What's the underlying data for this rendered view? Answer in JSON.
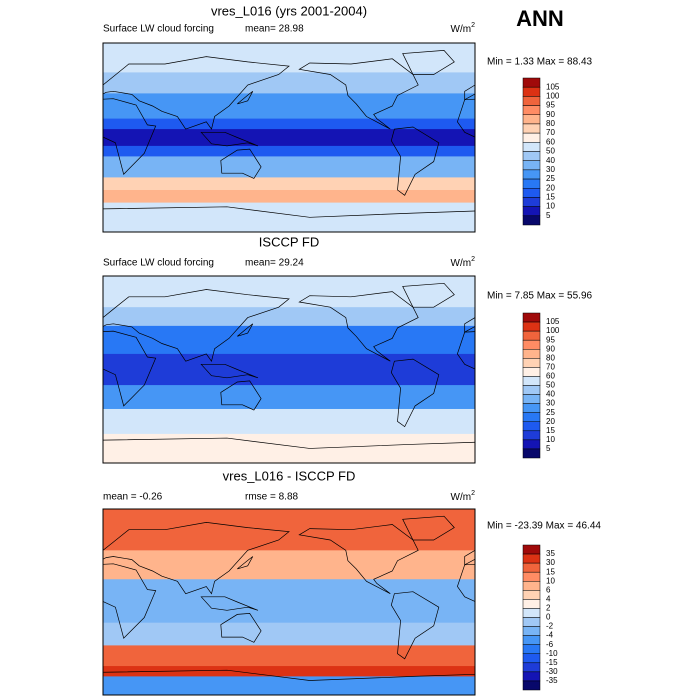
{
  "season": "ANN",
  "panels": [
    {
      "title": "vres_L016 (yrs 2001-2004)",
      "left": "Surface LW cloud forcing",
      "center": "mean=  28.98",
      "units": {
        "base": "W/m",
        "sup": "2"
      },
      "minmax": "Min =  1.33 Max =  88.43",
      "colorbar_labels": [
        "105",
        "100",
        "95",
        "90",
        "80",
        "70",
        "60",
        "50",
        "40",
        "30",
        "25",
        "20",
        "15",
        "10",
        "5"
      ]
    },
    {
      "title": "ISCCP FD",
      "left": "Surface LW cloud forcing",
      "center": "mean=  29.24",
      "units": {
        "base": "W/m",
        "sup": "2"
      },
      "minmax": "Min =  7.85 Max =  55.96",
      "colorbar_labels": [
        "105",
        "100",
        "95",
        "90",
        "80",
        "70",
        "60",
        "50",
        "40",
        "30",
        "25",
        "20",
        "15",
        "10",
        "5"
      ]
    },
    {
      "title": "vres_L016 - ISCCP FD",
      "left": "mean =  -0.26",
      "center": "rmse =  8.88",
      "units": {
        "base": "W/m",
        "sup": "2"
      },
      "minmax": "Min = -23.39 Max =  46.44",
      "colorbar_labels": [
        "35",
        "30",
        "15",
        "10",
        "6",
        "4",
        "2",
        "0",
        "-2",
        "-4",
        "-6",
        "-10",
        "-15",
        "-30",
        "-35"
      ]
    }
  ]
}
